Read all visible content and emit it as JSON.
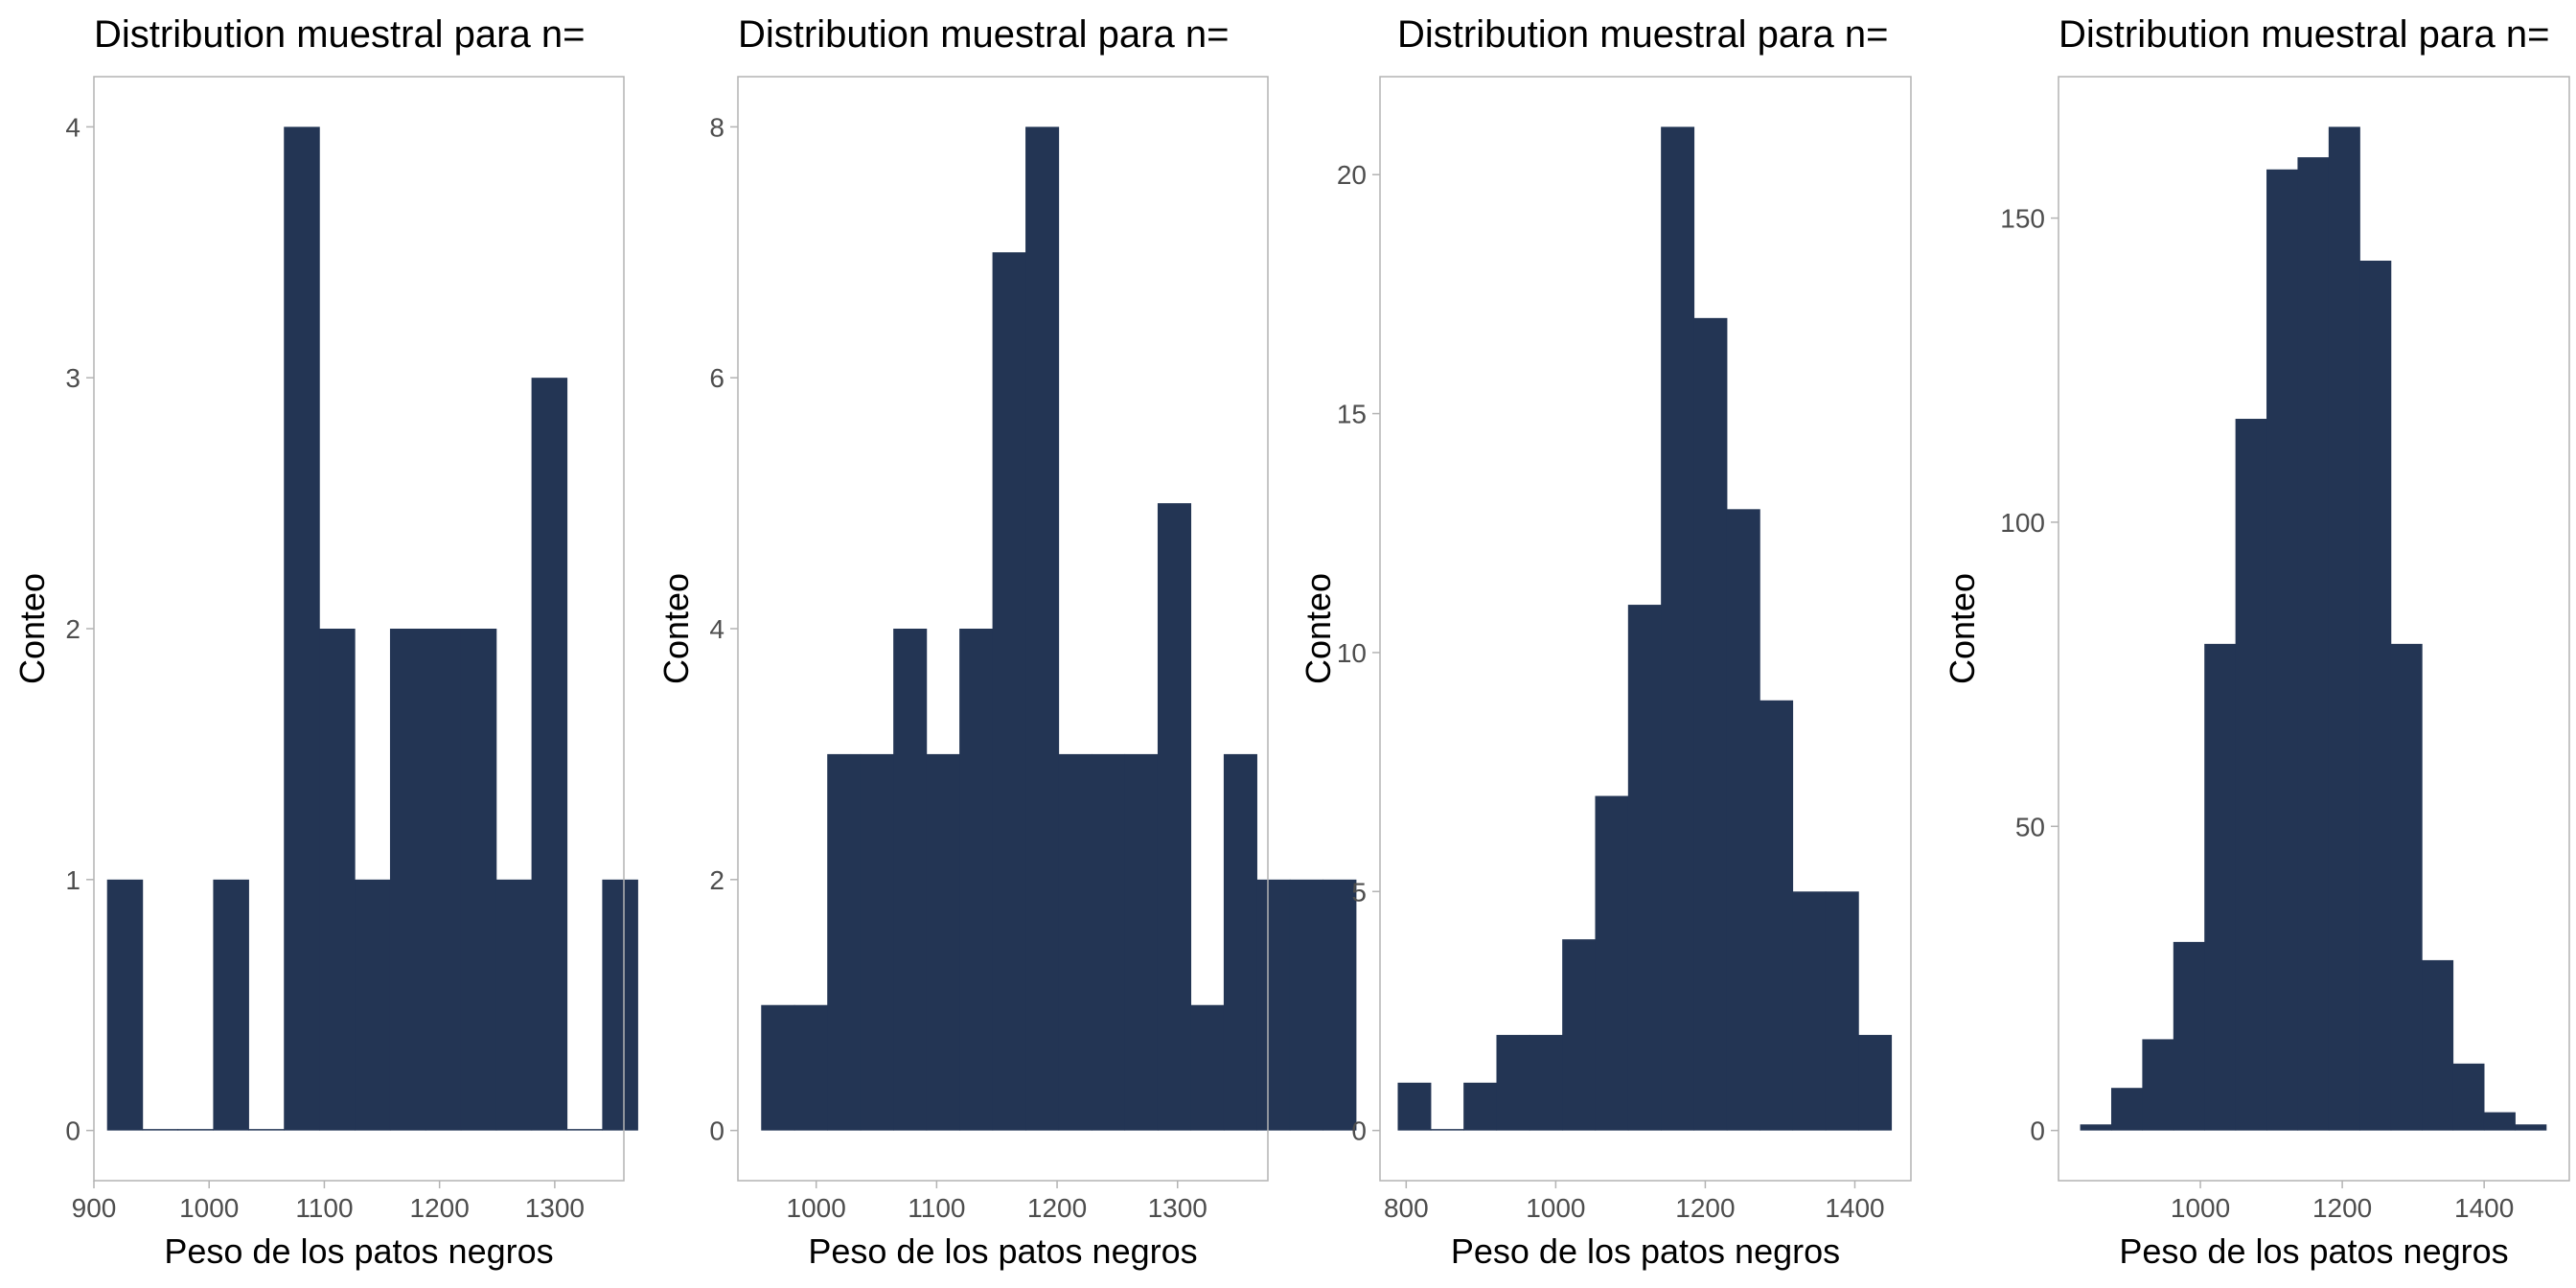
{
  "colors": {
    "bar": "#233554",
    "frame": "#b3b3b3",
    "tick_text": "#4d4d4d",
    "text": "#000000"
  },
  "chart_data": [
    {
      "type": "bar",
      "title": "Distribution muestral para n=",
      "xlabel": "Peso de los patos negros",
      "ylabel": "Conteo",
      "xlim": [
        900,
        1360
      ],
      "ylim": [
        -0.2,
        4.2
      ],
      "xticks": [
        900,
        1000,
        1100,
        1200,
        1300
      ],
      "yticks": [
        0,
        1,
        2,
        3,
        4
      ],
      "bin_start": 911.4,
      "bin_width": 30.7,
      "values": [
        1,
        0,
        0,
        1,
        0,
        4,
        2,
        1,
        2,
        2,
        2,
        1,
        3,
        0,
        1
      ]
    },
    {
      "type": "bar",
      "title": "Distribution muestral para n=",
      "xlabel": "Peso de los patos negros",
      "ylabel": "Conteo",
      "xlim": [
        935,
        1375
      ],
      "ylim": [
        -0.4,
        8.4
      ],
      "xticks": [
        1000,
        1100,
        1200,
        1300
      ],
      "yticks": [
        0,
        2,
        4,
        6,
        8
      ],
      "bin_start": 954.3,
      "bin_width": 27.43,
      "values": [
        1,
        1,
        3,
        3,
        4,
        3,
        4,
        7,
        8,
        3,
        3,
        3,
        5,
        1,
        3,
        2,
        2,
        2
      ]
    },
    {
      "type": "bar",
      "title": "Distribution muestral para n=",
      "xlabel": "Peso de los patos negros",
      "ylabel": "Conteo",
      "xlim": [
        765,
        1475
      ],
      "ylim": [
        -1.05,
        22.05
      ],
      "xticks": [
        800,
        1000,
        1200,
        1400
      ],
      "yticks": [
        0,
        5,
        10,
        15,
        20
      ],
      "bin_start": 788.7,
      "bin_width": 44.0,
      "values": [
        1,
        0,
        1,
        2,
        2,
        4,
        7,
        11,
        21,
        17,
        13,
        9,
        5,
        5,
        2
      ]
    },
    {
      "type": "bar",
      "title": "Distribution muestral para n=",
      "xlabel": "Peso de los patos negros",
      "ylabel": "Conteo",
      "xlim": [
        800,
        1520
      ],
      "ylim": [
        -8.25,
        173.25
      ],
      "xticks": [
        1000,
        1200,
        1400
      ],
      "yticks": [
        0,
        50,
        100,
        150
      ],
      "bin_start": 830.5,
      "bin_width": 43.78,
      "values": [
        1,
        7,
        15,
        31,
        80,
        117,
        158,
        160,
        165,
        143,
        80,
        28,
        11,
        3,
        1
      ]
    }
  ]
}
